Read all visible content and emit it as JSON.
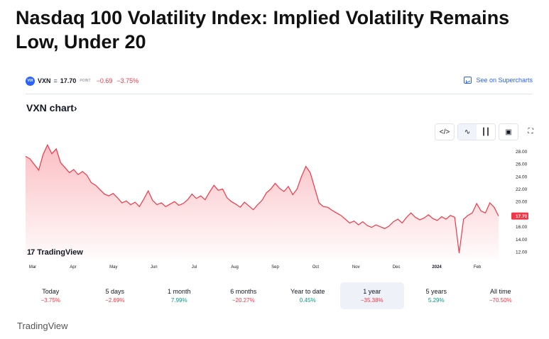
{
  "headline": "Nasdaq 100 Volatility Index: Implied Volatility Remains Low, Under 20",
  "symbol": {
    "logo": "VIX",
    "name": "VXN",
    "eq": "=",
    "price": "17.70",
    "unit": "POINT",
    "change": "−0.69",
    "change_pct": "−3.75%"
  },
  "see_on": "See on Supercharts",
  "chart_title": "VXN chart›",
  "toolbar": {
    "icons": [
      "code-icon",
      "area-chart-icon",
      "candles-icon",
      "camera-icon",
      "fullscreen-icon"
    ],
    "glyphs": [
      "</>",
      "∿",
      "┃┃",
      "▣",
      "⛶"
    ]
  },
  "tv_logo": {
    "mark": "17",
    "text": "TradingView"
  },
  "ranges": [
    {
      "label": "Today",
      "value": "−3.75%",
      "sign": "neg"
    },
    {
      "label": "5 days",
      "value": "−2.69%",
      "sign": "neg"
    },
    {
      "label": "1 month",
      "value": "7.99%",
      "sign": "pos"
    },
    {
      "label": "6 months",
      "value": "−20.27%",
      "sign": "neg"
    },
    {
      "label": "Year to date",
      "value": "0.45%",
      "sign": "pos"
    },
    {
      "label": "1 year",
      "value": "−35.38%",
      "sign": "neg",
      "active": true
    },
    {
      "label": "5 years",
      "value": "5.29%",
      "sign": "pos"
    },
    {
      "label": "All time",
      "value": "−70.50%",
      "sign": "neg"
    }
  ],
  "footer_brand": "TradingView",
  "colors": {
    "line": "#f23645",
    "fill_top": "#f23645",
    "accent": "#2962ff"
  },
  "chart_data": {
    "type": "area",
    "title": "",
    "xlabel": "",
    "ylabel": "",
    "ylim": [
      11,
      29.5
    ],
    "y_ticks": [
      "28.00",
      "26.00",
      "24.00",
      "22.00",
      "20.00",
      "18.00",
      "16.00",
      "14.00",
      "12.00"
    ],
    "x_ticks": [
      "Mar",
      "Apr",
      "May",
      "Jun",
      "Jul",
      "Aug",
      "Sep",
      "Oct",
      "Nov",
      "Dec",
      "2024",
      "Feb"
    ],
    "last_value_label": "17.70",
    "series": [
      {
        "values": [
          27.2,
          26.8,
          25.9,
          25.0,
          27.5,
          29.0,
          27.6,
          28.4,
          26.2,
          25.4,
          24.6,
          25.1,
          24.3,
          24.8,
          24.2,
          23.0,
          22.6,
          21.9,
          21.2,
          20.9,
          21.3,
          20.6,
          19.8,
          20.1,
          19.5,
          19.9,
          19.2,
          20.4,
          21.7,
          20.2,
          19.5,
          19.8,
          19.2,
          19.6,
          20.0,
          19.4,
          19.7,
          20.3,
          21.2,
          20.5,
          20.9,
          20.3,
          21.5,
          22.6,
          21.8,
          22.0,
          20.6,
          20.0,
          19.6,
          19.1,
          19.9,
          19.3,
          18.7,
          19.5,
          20.2,
          21.4,
          22.0,
          22.9,
          22.1,
          21.6,
          22.4,
          21.1,
          22.0,
          24.0,
          25.6,
          24.6,
          22.2,
          19.8,
          19.2,
          19.1,
          18.6,
          18.2,
          17.8,
          17.2,
          16.6,
          16.9,
          16.3,
          16.8,
          16.2,
          15.9,
          16.3,
          16.0,
          15.7,
          16.1,
          16.8,
          17.2,
          16.6,
          17.5,
          18.2,
          17.5,
          17.1,
          17.4,
          17.9,
          17.3,
          17.0,
          17.6,
          17.2,
          17.8,
          17.5,
          11.8,
          17.2,
          17.8,
          18.2,
          19.7,
          18.5,
          18.2,
          19.8,
          19.1,
          17.7
        ]
      }
    ]
  }
}
